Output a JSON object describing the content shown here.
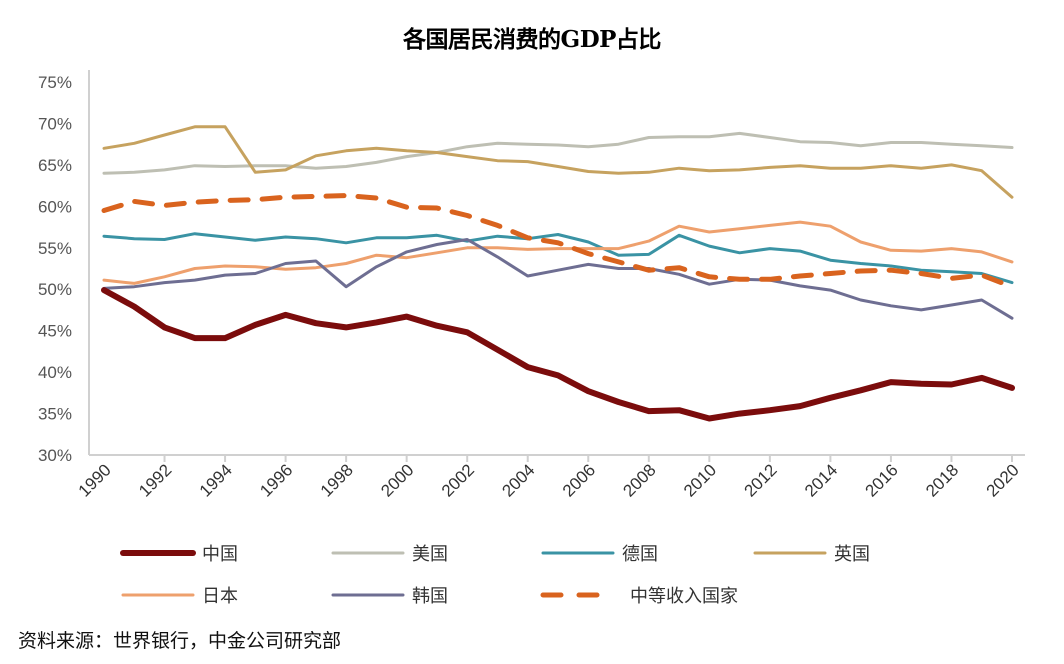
{
  "chart_data": {
    "type": "line",
    "title": "各国居民消费的GDP占比",
    "xlabel": "",
    "ylabel": "",
    "ylim": [
      30,
      75
    ],
    "yticks": [
      "30%",
      "35%",
      "40%",
      "45%",
      "50%",
      "55%",
      "60%",
      "65%",
      "70%",
      "75%"
    ],
    "ytick_values": [
      30,
      35,
      40,
      45,
      50,
      55,
      60,
      65,
      70,
      75
    ],
    "x": [
      1990,
      1991,
      1992,
      1993,
      1994,
      1995,
      1996,
      1997,
      1998,
      1999,
      2000,
      2001,
      2002,
      2003,
      2004,
      2005,
      2006,
      2007,
      2008,
      2009,
      2010,
      2011,
      2012,
      2013,
      2014,
      2015,
      2016,
      2017,
      2018,
      2019,
      2020
    ],
    "xticks": [
      "1990",
      "1992",
      "1994",
      "1996",
      "1998",
      "2000",
      "2002",
      "2004",
      "2006",
      "2008",
      "2010",
      "2012",
      "2014",
      "2016",
      "2018",
      "2020"
    ],
    "grid": false,
    "legend_position": "bottom",
    "series": [
      {
        "name": "中国",
        "color": "#7B0C0C",
        "style": "solid-thick",
        "values": [
          49.9,
          47.9,
          45.4,
          44.1,
          44.1,
          45.7,
          46.9,
          45.9,
          45.4,
          46.0,
          46.7,
          45.6,
          44.8,
          42.7,
          40.6,
          39.6,
          37.7,
          36.4,
          35.3,
          35.4,
          34.4,
          35.0,
          35.4,
          35.9,
          36.9,
          37.8,
          38.8,
          38.6,
          38.5,
          39.3,
          38.1
        ]
      },
      {
        "name": "美国",
        "color": "#BEBFB3",
        "style": "solid",
        "values": [
          64.0,
          64.1,
          64.4,
          64.9,
          64.8,
          64.9,
          64.9,
          64.6,
          64.8,
          65.3,
          66.0,
          66.5,
          67.2,
          67.6,
          67.5,
          67.4,
          67.2,
          67.5,
          68.3,
          68.4,
          68.4,
          68.8,
          68.3,
          67.8,
          67.7,
          67.3,
          67.7,
          67.7,
          67.5,
          67.3,
          67.1
        ]
      },
      {
        "name": "德国",
        "color": "#3A93A4",
        "style": "solid",
        "values": [
          56.4,
          56.1,
          56.0,
          56.7,
          56.3,
          55.9,
          56.3,
          56.1,
          55.6,
          56.2,
          56.2,
          56.5,
          55.8,
          56.4,
          56.1,
          56.6,
          55.7,
          54.1,
          54.2,
          56.5,
          55.2,
          54.4,
          54.9,
          54.6,
          53.5,
          53.1,
          52.8,
          52.3,
          52.1,
          51.9,
          50.8
        ]
      },
      {
        "name": "英国",
        "color": "#C6A25F",
        "style": "solid",
        "values": [
          67.0,
          67.6,
          68.6,
          69.6,
          69.6,
          64.1,
          64.4,
          66.1,
          66.7,
          67.0,
          66.7,
          66.5,
          66.0,
          65.5,
          65.4,
          64.8,
          64.2,
          64.0,
          64.1,
          64.6,
          64.3,
          64.4,
          64.7,
          64.9,
          64.6,
          64.6,
          64.9,
          64.6,
          65.0,
          64.3,
          61.1
        ]
      },
      {
        "name": "日本",
        "color": "#EEA06D",
        "style": "solid",
        "values": [
          51.1,
          50.7,
          51.5,
          52.5,
          52.8,
          52.7,
          52.4,
          52.6,
          53.1,
          54.1,
          53.8,
          54.4,
          55.0,
          55.0,
          54.8,
          54.9,
          54.9,
          54.9,
          55.8,
          57.6,
          56.9,
          57.3,
          57.7,
          58.1,
          57.6,
          55.7,
          54.7,
          54.6,
          54.9,
          54.5,
          53.3
        ]
      },
      {
        "name": "韩国",
        "color": "#6E6E92",
        "style": "solid",
        "values": [
          50.1,
          50.3,
          50.8,
          51.1,
          51.7,
          51.9,
          53.1,
          53.4,
          50.3,
          52.7,
          54.5,
          55.4,
          56.0,
          53.9,
          51.6,
          52.3,
          53.0,
          52.5,
          52.5,
          51.8,
          50.6,
          51.2,
          51.1,
          50.4,
          49.9,
          48.7,
          48.0,
          47.5,
          48.1,
          48.7,
          46.5
        ]
      },
      {
        "name": "中等收入国家",
        "color": "#D9631E",
        "style": "dashed",
        "values": [
          59.5,
          60.6,
          60.1,
          60.5,
          60.7,
          60.8,
          61.1,
          61.2,
          61.3,
          61.0,
          59.9,
          59.8,
          58.9,
          57.7,
          56.2,
          55.6,
          54.3,
          53.3,
          52.3,
          52.6,
          51.5,
          51.2,
          51.2,
          51.6,
          51.9,
          52.2,
          52.3,
          51.9,
          51.3,
          51.7,
          50.3
        ]
      }
    ]
  },
  "source_note": "资料来源：世界银行，中金公司研究部"
}
